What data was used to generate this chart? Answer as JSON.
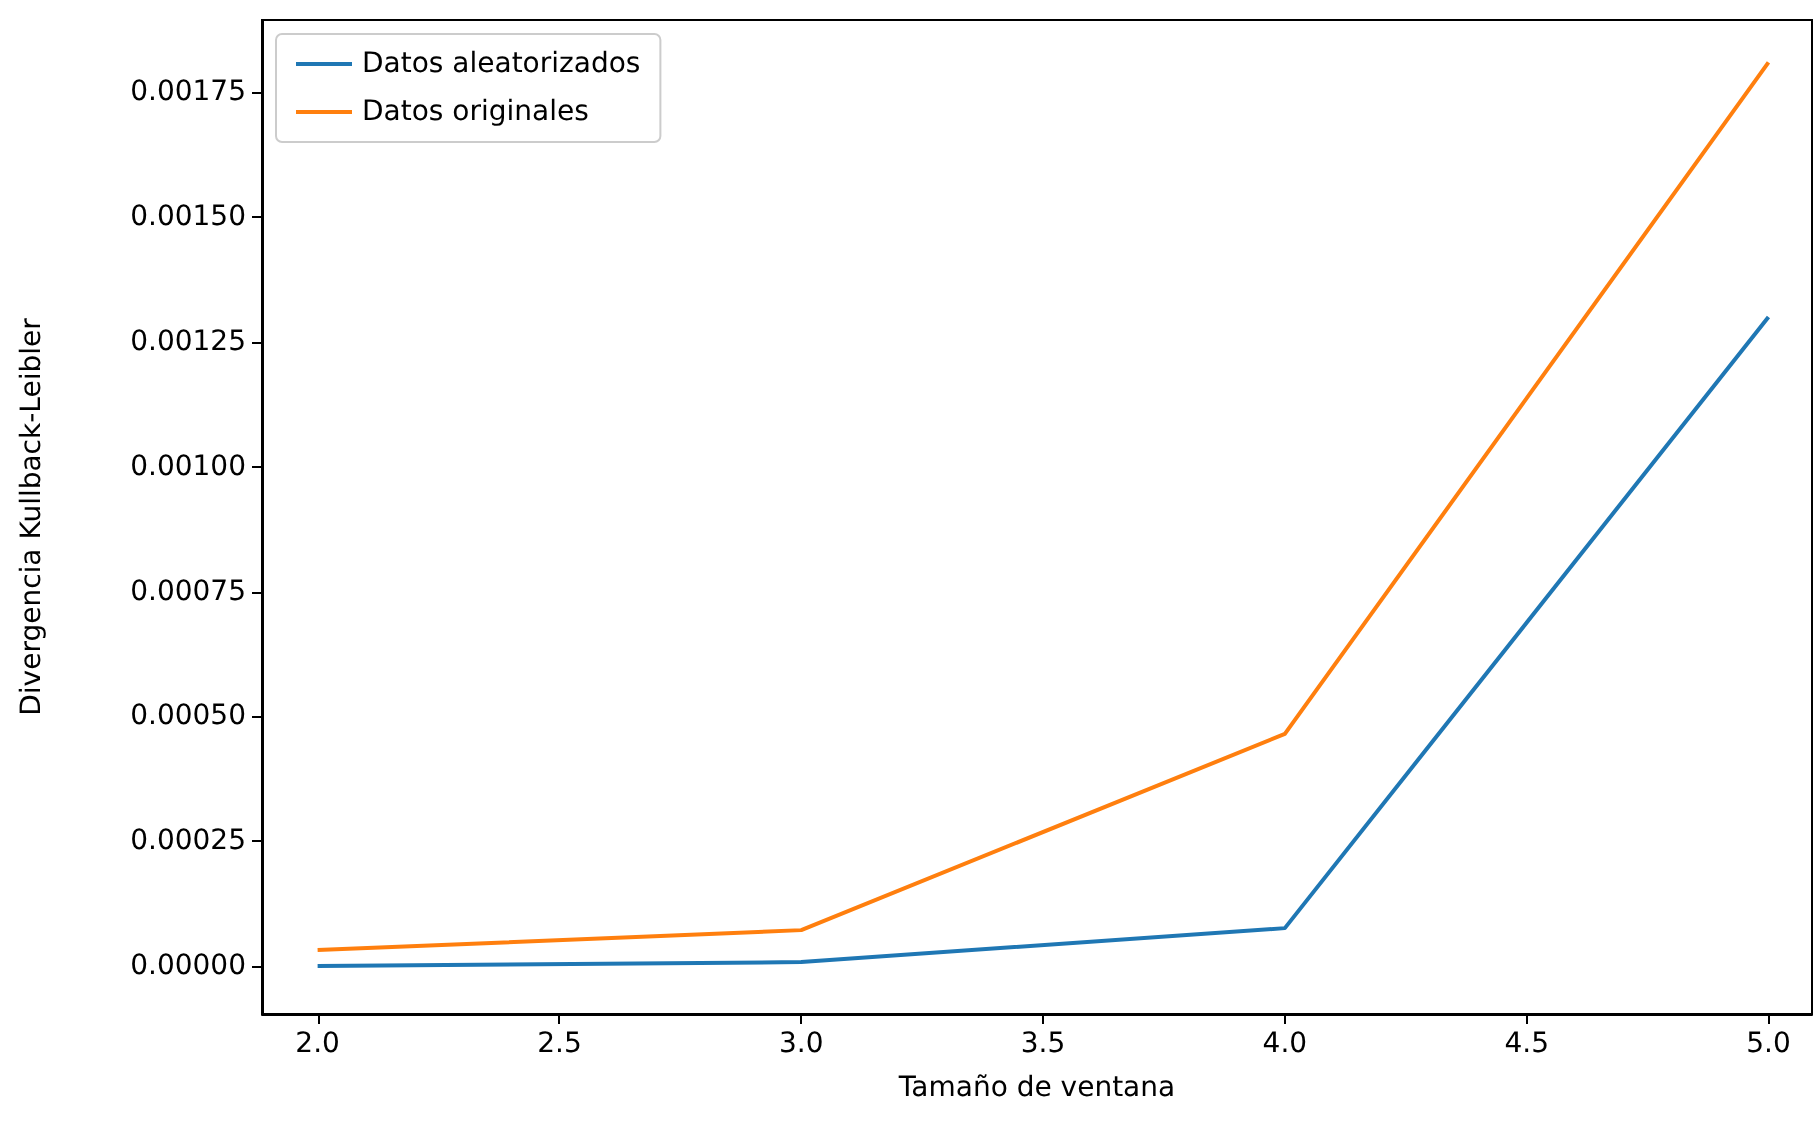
{
  "chart_data": {
    "type": "line",
    "xlabel": "Tamaño de ventana",
    "ylabel": "Divergencia Kullback-Leibler",
    "x": [
      2,
      3,
      4,
      5
    ],
    "series": [
      {
        "name": "Datos aleatorizados",
        "color": "#1f77b4",
        "values": [
          0.0,
          8e-06,
          7.6e-05,
          0.0013
        ]
      },
      {
        "name": "Datos originales",
        "color": "#ff7f0e",
        "values": [
          3.2e-05,
          7.2e-05,
          0.000465,
          0.00181
        ]
      }
    ],
    "xlim": [
      1.885,
      5.09
    ],
    "ylim": [
      -9.6e-05,
      0.001895
    ],
    "xticks": [
      {
        "value": 2,
        "label": "2.0"
      },
      {
        "value": 2.5,
        "label": "2.5"
      },
      {
        "value": 3,
        "label": "3.0"
      },
      {
        "value": 3.5,
        "label": "3.5"
      },
      {
        "value": 4,
        "label": "4.0"
      },
      {
        "value": 4.5,
        "label": "4.5"
      },
      {
        "value": 5,
        "label": "5.0"
      }
    ],
    "yticks": [
      {
        "value": 0,
        "label": "0.00000"
      },
      {
        "value": 0.00025,
        "label": "0.00025"
      },
      {
        "value": 0.0005,
        "label": "0.00050"
      },
      {
        "value": 0.00075,
        "label": "0.00075"
      },
      {
        "value": 0.001,
        "label": "0.00100"
      },
      {
        "value": 0.00125,
        "label": "0.00125"
      },
      {
        "value": 0.0015,
        "label": "0.00150"
      },
      {
        "value": 0.00175,
        "label": "0.00175"
      }
    ],
    "grid": false,
    "legend": "top left",
    "marker": "none",
    "line_style": "solid"
  }
}
